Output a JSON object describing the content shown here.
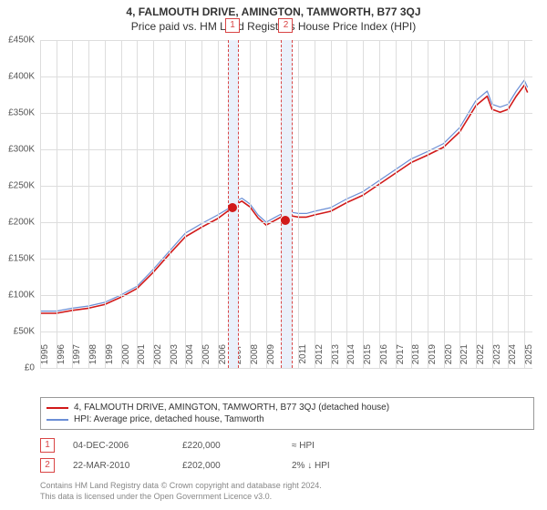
{
  "title": "4, FALMOUTH DRIVE, AMINGTON, TAMWORTH, B77 3QJ",
  "subtitle": "Price paid vs. HM Land Registry's House Price Index (HPI)",
  "chart": {
    "type": "line",
    "x_min": 1995,
    "x_max": 2025.5,
    "y_min": 0,
    "y_max": 450000,
    "y_ticks": [
      0,
      50000,
      100000,
      150000,
      200000,
      250000,
      300000,
      350000,
      400000,
      450000
    ],
    "y_labels": [
      "£0",
      "£50K",
      "£100K",
      "£150K",
      "£200K",
      "£250K",
      "£300K",
      "£350K",
      "£400K",
      "£450K"
    ],
    "x_ticks": [
      1995,
      1996,
      1997,
      1998,
      1999,
      2000,
      2001,
      2002,
      2003,
      2004,
      2005,
      2006,
      2007,
      2008,
      2009,
      2010,
      2011,
      2012,
      2013,
      2014,
      2015,
      2016,
      2017,
      2018,
      2019,
      2020,
      2021,
      2022,
      2023,
      2024,
      2025
    ],
    "background_color": "#ffffff",
    "grid_color": "#dddddd",
    "series": [
      {
        "id": "hpi",
        "label": "HPI: Average price, detached house, Tamworth",
        "color": "#6b8fd6",
        "width": 1.2,
        "data": [
          [
            1995,
            78000
          ],
          [
            1996,
            78000
          ],
          [
            1997,
            82000
          ],
          [
            1998,
            85000
          ],
          [
            1999,
            90000
          ],
          [
            2000,
            100000
          ],
          [
            2001,
            112000
          ],
          [
            2002,
            135000
          ],
          [
            2003,
            160000
          ],
          [
            2004,
            185000
          ],
          [
            2005,
            198000
          ],
          [
            2006,
            210000
          ],
          [
            2006.92,
            222000
          ],
          [
            2007,
            227000
          ],
          [
            2007.5,
            233000
          ],
          [
            2008,
            225000
          ],
          [
            2008.5,
            210000
          ],
          [
            2009,
            200000
          ],
          [
            2009.5,
            206000
          ],
          [
            2010,
            212000
          ],
          [
            2010.22,
            207000
          ],
          [
            2010.5,
            214000
          ],
          [
            2011,
            212000
          ],
          [
            2011.5,
            212000
          ],
          [
            2012,
            215000
          ],
          [
            2013,
            220000
          ],
          [
            2014,
            232000
          ],
          [
            2015,
            242000
          ],
          [
            2016,
            257000
          ],
          [
            2017,
            272000
          ],
          [
            2018,
            287000
          ],
          [
            2019,
            297000
          ],
          [
            2020,
            308000
          ],
          [
            2021,
            330000
          ],
          [
            2022,
            367000
          ],
          [
            2022.7,
            380000
          ],
          [
            2023,
            362000
          ],
          [
            2023.5,
            358000
          ],
          [
            2024,
            362000
          ],
          [
            2024.5,
            380000
          ],
          [
            2025,
            395000
          ],
          [
            2025.2,
            385000
          ]
        ]
      },
      {
        "id": "subject",
        "label": "4, FALMOUTH DRIVE, AMINGTON, TAMWORTH, B77 3QJ (detached house)",
        "color": "#d11919",
        "width": 1.6,
        "data": [
          [
            1995,
            75000
          ],
          [
            1996,
            75000
          ],
          [
            1997,
            79000
          ],
          [
            1998,
            82000
          ],
          [
            1999,
            87000
          ],
          [
            2000,
            97000
          ],
          [
            2001,
            109000
          ],
          [
            2002,
            131000
          ],
          [
            2003,
            156000
          ],
          [
            2004,
            180000
          ],
          [
            2005,
            193000
          ],
          [
            2006,
            205000
          ],
          [
            2006.92,
            220000
          ],
          [
            2007,
            223000
          ],
          [
            2007.5,
            229000
          ],
          [
            2008,
            221000
          ],
          [
            2008.5,
            206000
          ],
          [
            2009,
            196000
          ],
          [
            2009.5,
            202000
          ],
          [
            2010,
            208000
          ],
          [
            2010.22,
            202000
          ],
          [
            2010.5,
            209000
          ],
          [
            2011,
            207000
          ],
          [
            2011.5,
            207000
          ],
          [
            2012,
            210000
          ],
          [
            2013,
            215000
          ],
          [
            2014,
            227000
          ],
          [
            2015,
            237000
          ],
          [
            2016,
            252000
          ],
          [
            2017,
            267000
          ],
          [
            2018,
            282000
          ],
          [
            2019,
            292000
          ],
          [
            2020,
            303000
          ],
          [
            2021,
            324000
          ],
          [
            2022,
            360000
          ],
          [
            2022.7,
            373000
          ],
          [
            2023,
            355000
          ],
          [
            2023.5,
            351000
          ],
          [
            2024,
            355000
          ],
          [
            2024.5,
            373000
          ],
          [
            2025,
            388000
          ],
          [
            2025.2,
            378000
          ]
        ]
      }
    ],
    "markers": [
      {
        "num": "1",
        "x": 2006.92,
        "band_width_years": 0.6
      },
      {
        "num": "2",
        "x": 2010.22,
        "band_width_years": 0.6
      }
    ],
    "sale_points": [
      {
        "x": 2006.92,
        "y": 220000,
        "color": "#d11919"
      },
      {
        "x": 2010.22,
        "y": 202000,
        "color": "#d11919"
      }
    ]
  },
  "legend": {
    "items": [
      {
        "color": "#d11919",
        "label": "4, FALMOUTH DRIVE, AMINGTON, TAMWORTH, B77 3QJ (detached house)"
      },
      {
        "color": "#6b8fd6",
        "label": "HPI: Average price, detached house, Tamworth"
      }
    ]
  },
  "sales": [
    {
      "num": "1",
      "date": "04-DEC-2006",
      "price": "£220,000",
      "delta": "≈ HPI"
    },
    {
      "num": "2",
      "date": "22-MAR-2010",
      "price": "£202,000",
      "delta": "2% ↓ HPI"
    }
  ],
  "footnote_line1": "Contains HM Land Registry data © Crown copyright and database right 2024.",
  "footnote_line2": "This data is licensed under the Open Government Licence v3.0."
}
